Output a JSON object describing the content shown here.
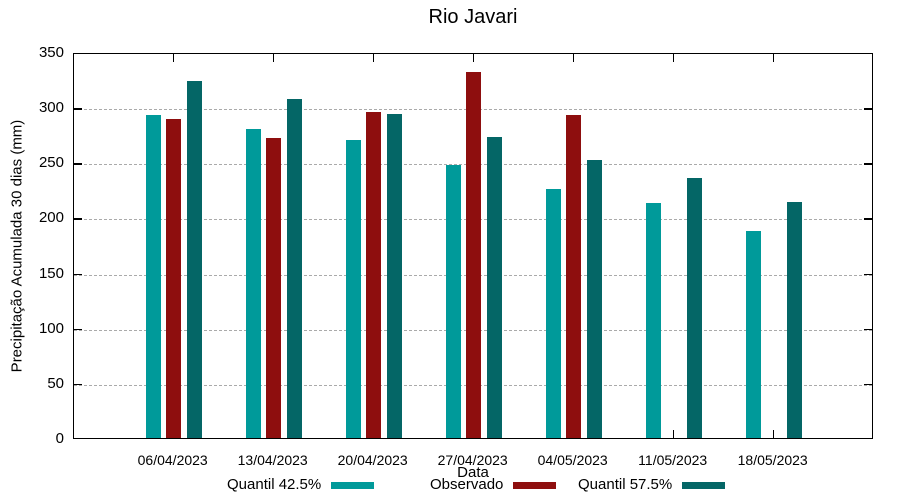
{
  "chart_data": {
    "type": "bar",
    "title": "Rio Javari",
    "xlabel": "Data",
    "ylabel": "Precipitação Acumulada 30 dias (mm)",
    "ylim": [
      0,
      350
    ],
    "ytick_step": 50,
    "grid": "horizontal-dashed",
    "legend_position": "bottom",
    "categories": [
      "06/04/2023",
      "13/04/2023",
      "20/04/2023",
      "27/04/2023",
      "04/05/2023",
      "11/05/2023",
      "18/05/2023"
    ],
    "series": [
      {
        "name": "Quantil 42.5%",
        "color": "#009A9A",
        "values": [
          293,
          280,
          270,
          248,
          226,
          213,
          188
        ]
      },
      {
        "name": "Observado",
        "color": "#8E0E0E",
        "values": [
          289,
          272,
          296,
          332,
          293,
          null,
          null
        ]
      },
      {
        "name": "Quantil 57.5%",
        "color": "#046666",
        "values": [
          324,
          307,
          294,
          273,
          252,
          236,
          214
        ]
      }
    ]
  },
  "colors": {
    "axis": "#000000",
    "grid": "#AAAAAA",
    "background": "#FFFFFF"
  }
}
